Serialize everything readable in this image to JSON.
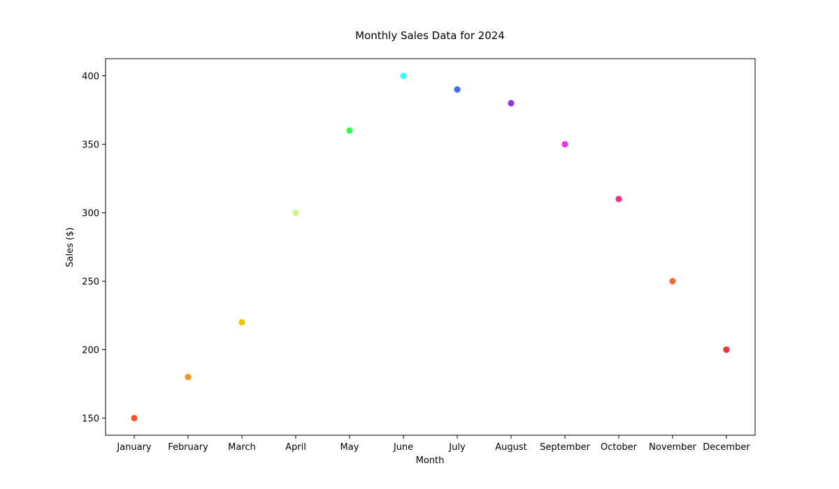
{
  "chart_data": {
    "type": "scatter",
    "title": "Monthly Sales Data for 2024",
    "xlabel": "Month",
    "ylabel": "Sales ($)",
    "categories": [
      "January",
      "February",
      "March",
      "April",
      "May",
      "June",
      "July",
      "August",
      "September",
      "October",
      "November",
      "December"
    ],
    "values": [
      150,
      180,
      220,
      300,
      360,
      400,
      390,
      380,
      350,
      310,
      250,
      200
    ],
    "point_colors": [
      "#f05a28",
      "#f7941d",
      "#f5c200",
      "#d4f28c",
      "#33ff4d",
      "#33ffff",
      "#3a6ff0",
      "#8a33f0",
      "#f033f0",
      "#f0338a",
      "#f06a33",
      "#f03333"
    ],
    "y_ticks": [
      150,
      200,
      250,
      300,
      350,
      400
    ],
    "ylim": [
      137.5,
      412.5
    ],
    "grid": false,
    "legend": false
  }
}
